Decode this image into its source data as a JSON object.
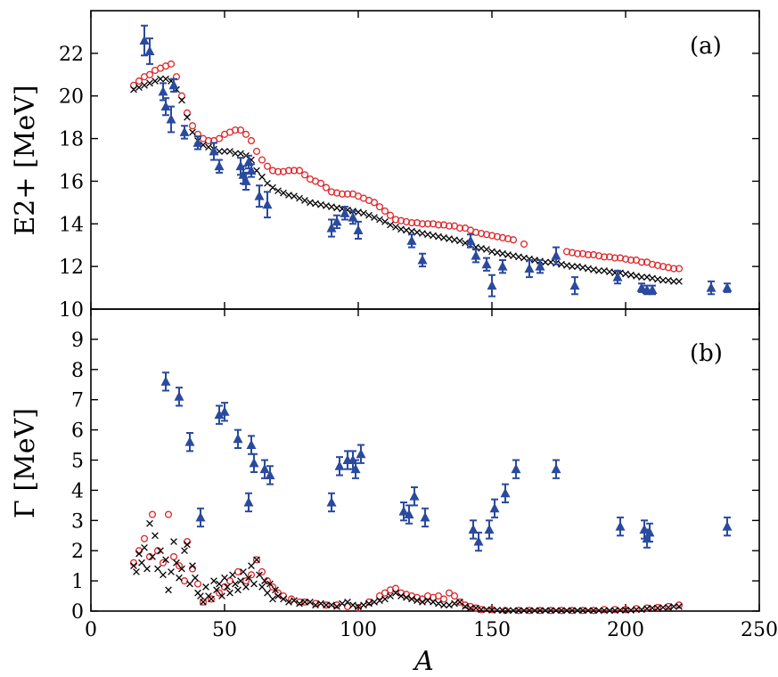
{
  "chart_data": [
    {
      "panel": "(a)",
      "type": "scatter",
      "xlabel": "A",
      "ylabel": "E2+ [MeV]",
      "xlim": [
        0,
        250
      ],
      "ylim": [
        10,
        24
      ],
      "xticks": [
        0,
        50,
        100,
        150,
        200,
        250
      ],
      "yticks": [
        10,
        12,
        14,
        16,
        18,
        20,
        22
      ],
      "series": [
        {
          "marker": "open-circle",
          "color": "#e0252a",
          "x": [
            16,
            18,
            20,
            22,
            24,
            26,
            28,
            30,
            32,
            34,
            36,
            38,
            40,
            42,
            44,
            46,
            48,
            50,
            52,
            54,
            56,
            58,
            60,
            62,
            64,
            66,
            68,
            70,
            72,
            74,
            76,
            78,
            80,
            82,
            84,
            86,
            88,
            90,
            92,
            94,
            96,
            98,
            100,
            102,
            104,
            106,
            108,
            110,
            112,
            114,
            116,
            118,
            120,
            122,
            124,
            126,
            128,
            130,
            132,
            134,
            136,
            138,
            140,
            142,
            144,
            146,
            148,
            150,
            152,
            154,
            156,
            158,
            162,
            178,
            180,
            182,
            184,
            186,
            188,
            190,
            192,
            194,
            196,
            198,
            200,
            202,
            204,
            206,
            208,
            210,
            212,
            214,
            216,
            218,
            220
          ],
          "y": [
            20.5,
            20.7,
            20.9,
            21.0,
            21.2,
            21.3,
            21.4,
            21.5,
            20.9,
            20.0,
            19.2,
            18.6,
            18.2,
            18.0,
            17.9,
            17.9,
            18.0,
            18.2,
            18.3,
            18.4,
            18.4,
            18.2,
            17.9,
            17.4,
            17.0,
            16.7,
            16.5,
            16.45,
            16.45,
            16.5,
            16.5,
            16.5,
            16.3,
            16.1,
            16.0,
            15.9,
            15.7,
            15.5,
            15.45,
            15.4,
            15.4,
            15.4,
            15.3,
            15.2,
            15.1,
            15.0,
            14.8,
            14.6,
            14.4,
            14.2,
            14.15,
            14.1,
            14.05,
            14.05,
            14.0,
            14.0,
            14.0,
            13.95,
            13.95,
            13.9,
            13.9,
            13.8,
            13.8,
            13.7,
            13.6,
            13.55,
            13.5,
            13.45,
            13.4,
            13.35,
            13.3,
            13.25,
            13.05,
            12.7,
            12.65,
            12.6,
            12.6,
            12.55,
            12.55,
            12.5,
            12.45,
            12.45,
            12.4,
            12.4,
            12.35,
            12.3,
            12.3,
            12.2,
            12.2,
            12.1,
            12.05,
            12.0,
            11.95,
            11.9,
            11.9
          ]
        },
        {
          "marker": "cross",
          "color": "#000000",
          "x": [
            16,
            18,
            20,
            22,
            24,
            26,
            28,
            30,
            32,
            34,
            36,
            38,
            40,
            42,
            44,
            46,
            48,
            50,
            52,
            54,
            56,
            58,
            60,
            62,
            64,
            66,
            68,
            70,
            72,
            74,
            76,
            78,
            80,
            82,
            84,
            86,
            88,
            90,
            92,
            94,
            96,
            98,
            100,
            102,
            104,
            106,
            108,
            110,
            112,
            114,
            116,
            118,
            120,
            122,
            124,
            126,
            128,
            130,
            132,
            134,
            136,
            138,
            140,
            142,
            144,
            146,
            148,
            150,
            152,
            154,
            156,
            158,
            160,
            162,
            164,
            166,
            168,
            170,
            172,
            174,
            176,
            178,
            180,
            182,
            184,
            186,
            188,
            190,
            192,
            194,
            196,
            198,
            200,
            202,
            204,
            206,
            208,
            210,
            212,
            214,
            216,
            218,
            220
          ],
          "y": [
            20.3,
            20.4,
            20.5,
            20.6,
            20.7,
            20.8,
            20.8,
            20.7,
            20.3,
            19.8,
            19.0,
            18.3,
            17.9,
            17.7,
            17.6,
            17.5,
            17.4,
            17.4,
            17.4,
            17.3,
            17.3,
            17.2,
            17.0,
            16.5,
            16.2,
            15.9,
            15.7,
            15.55,
            15.45,
            15.35,
            15.3,
            15.2,
            15.1,
            15.0,
            14.95,
            14.9,
            14.85,
            14.8,
            14.75,
            14.7,
            14.65,
            14.6,
            14.55,
            14.5,
            14.4,
            14.3,
            14.2,
            14.1,
            13.95,
            13.85,
            13.75,
            13.7,
            13.65,
            13.6,
            13.55,
            13.5,
            13.45,
            13.4,
            13.35,
            13.3,
            13.25,
            13.2,
            13.1,
            13.0,
            12.9,
            12.85,
            12.8,
            12.7,
            12.65,
            12.6,
            12.55,
            12.5,
            12.45,
            12.4,
            12.35,
            12.3,
            12.25,
            12.2,
            12.2,
            12.15,
            12.1,
            12.05,
            12.0,
            12.0,
            11.95,
            11.9,
            11.85,
            11.8,
            11.8,
            11.75,
            11.7,
            11.7,
            11.65,
            11.6,
            11.55,
            11.5,
            11.5,
            11.45,
            11.4,
            11.35,
            11.35,
            11.3,
            11.3
          ]
        },
        {
          "marker": "filled-triangle-errorbar",
          "color": "#2a4a9e",
          "x": [
            20,
            22,
            27,
            28,
            30,
            31,
            35,
            40,
            46,
            48,
            56,
            57,
            58,
            59,
            60,
            63,
            66,
            90,
            92,
            95,
            98,
            100,
            120,
            124,
            142,
            144,
            148,
            150,
            154,
            164,
            168,
            174,
            181,
            197,
            206,
            208,
            210,
            232,
            238
          ],
          "y": [
            22.6,
            22.1,
            20.2,
            19.5,
            18.9,
            20.5,
            18.3,
            17.8,
            17.4,
            16.7,
            16.7,
            16.3,
            16.0,
            16.9,
            16.5,
            15.3,
            14.9,
            13.8,
            14.1,
            14.5,
            14.3,
            13.7,
            13.2,
            12.3,
            13.2,
            12.5,
            12.1,
            11.1,
            12.0,
            11.9,
            12.0,
            12.5,
            11.1,
            11.5,
            11.0,
            10.9,
            10.9,
            11.0,
            11.0
          ],
          "err": [
            0.7,
            0.6,
            0.4,
            0.4,
            0.6,
            0.3,
            0.3,
            0.3,
            0.4,
            0.3,
            0.4,
            0.4,
            0.4,
            0.3,
            0.3,
            0.5,
            0.6,
            0.4,
            0.3,
            0.3,
            0.3,
            0.4,
            0.3,
            0.3,
            0.3,
            0.3,
            0.3,
            0.5,
            0.3,
            0.4,
            0.3,
            0.4,
            0.4,
            0.3,
            0.2,
            0.2,
            0.2,
            0.3,
            0.2
          ]
        }
      ]
    },
    {
      "panel": "(b)",
      "type": "scatter",
      "xlabel": "A",
      "ylabel": "Γ [MeV]",
      "xlim": [
        0,
        250
      ],
      "ylim": [
        0,
        10
      ],
      "xticks": [
        0,
        50,
        100,
        150,
        200,
        250
      ],
      "yticks": [
        0,
        1,
        2,
        3,
        4,
        5,
        6,
        7,
        8,
        9
      ],
      "series": [
        {
          "marker": "open-circle",
          "color": "#e0252a",
          "x": [
            16,
            18,
            20,
            22,
            23,
            25,
            27,
            29,
            31,
            33,
            35,
            36,
            38,
            40,
            42,
            45,
            48,
            50,
            52,
            55,
            58,
            60,
            62,
            64,
            66,
            68,
            70,
            72,
            75,
            78,
            80,
            84,
            88,
            92,
            96,
            100,
            104,
            108,
            110,
            112,
            114,
            116,
            118,
            120,
            122,
            124,
            126,
            128,
            130,
            132,
            134,
            136,
            138,
            140,
            142,
            144,
            146,
            150,
            155,
            160,
            164,
            168,
            172,
            176,
            180,
            184,
            188,
            192,
            196,
            200,
            204,
            208,
            212,
            216,
            220
          ],
          "y": [
            1.6,
            2.0,
            2.4,
            1.8,
            3.2,
            2.0,
            1.6,
            3.2,
            1.8,
            1.5,
            1.0,
            2.3,
            1.4,
            0.9,
            0.3,
            0.4,
            0.6,
            0.8,
            1.0,
            1.3,
            1.0,
            1.2,
            1.7,
            1.3,
            1.0,
            0.8,
            0.6,
            0.5,
            0.4,
            0.3,
            0.3,
            0.25,
            0.2,
            0.2,
            0.15,
            0.1,
            0.3,
            0.5,
            0.6,
            0.7,
            0.75,
            0.6,
            0.55,
            0.5,
            0.45,
            0.4,
            0.5,
            0.45,
            0.5,
            0.4,
            0.6,
            0.5,
            0.3,
            0.2,
            0.15,
            0.1,
            0.05,
            0.05,
            0.02,
            0.02,
            0.02,
            0.02,
            0.02,
            0.02,
            0.02,
            0.02,
            0.02,
            0.05,
            0.05,
            0.05,
            0.08,
            0.1,
            0.12,
            0.15,
            0.2
          ]
        },
        {
          "marker": "cross",
          "color": "#000000",
          "x": [
            16,
            17,
            18,
            19,
            20,
            21,
            22,
            23,
            24,
            25,
            26,
            27,
            28,
            29,
            30,
            31,
            32,
            33,
            34,
            35,
            36,
            37,
            38,
            39,
            40,
            41,
            42,
            43,
            44,
            45,
            46,
            47,
            48,
            49,
            50,
            51,
            52,
            53,
            54,
            55,
            56,
            57,
            58,
            59,
            60,
            61,
            62,
            63,
            64,
            65,
            66,
            67,
            68,
            69,
            70,
            72,
            74,
            76,
            78,
            80,
            82,
            84,
            86,
            88,
            90,
            92,
            94,
            96,
            98,
            100,
            102,
            104,
            106,
            108,
            110,
            112,
            114,
            116,
            118,
            120,
            122,
            124,
            126,
            128,
            130,
            132,
            134,
            136,
            138,
            140,
            142,
            144,
            146,
            148,
            150,
            152,
            154,
            156,
            158,
            160,
            162,
            164,
            166,
            168,
            170,
            172,
            174,
            176,
            178,
            180,
            182,
            184,
            186,
            188,
            190,
            192,
            194,
            196,
            198,
            200,
            202,
            204,
            206,
            208,
            210,
            212,
            214,
            216,
            218,
            220
          ],
          "y": [
            1.5,
            1.3,
            1.9,
            1.6,
            2.1,
            1.4,
            2.9,
            1.8,
            2.5,
            1.4,
            2.0,
            1.2,
            1.7,
            0.7,
            1.3,
            2.3,
            1.6,
            1.1,
            1.4,
            2.0,
            2.2,
            0.9,
            1.5,
            1.1,
            0.6,
            0.5,
            0.3,
            0.8,
            0.5,
            0.4,
            1.0,
            0.7,
            0.9,
            0.5,
            1.1,
            0.8,
            0.6,
            1.2,
            0.9,
            0.7,
            1.0,
            1.3,
            0.8,
            1.1,
            1.5,
            0.9,
            1.7,
            1.2,
            0.8,
            1.0,
            0.6,
            0.9,
            0.4,
            0.7,
            0.5,
            0.4,
            0.3,
            0.35,
            0.25,
            0.3,
            0.3,
            0.2,
            0.25,
            0.2,
            0.2,
            0.15,
            0.25,
            0.3,
            0.2,
            0.15,
            0.2,
            0.25,
            0.3,
            0.35,
            0.4,
            0.5,
            0.6,
            0.5,
            0.45,
            0.4,
            0.35,
            0.3,
            0.35,
            0.3,
            0.25,
            0.2,
            0.2,
            0.25,
            0.3,
            0.15,
            0.1,
            0.1,
            0.05,
            0.05,
            0.03,
            0.03,
            0.02,
            0.02,
            0.02,
            0.02,
            0.02,
            0.02,
            0.02,
            0.02,
            0.02,
            0.02,
            0.02,
            0.02,
            0.02,
            0.02,
            0.02,
            0.02,
            0.02,
            0.02,
            0.02,
            0.02,
            0.02,
            0.02,
            0.03,
            0.03,
            0.03,
            0.05,
            0.05,
            0.08,
            0.1,
            0.1,
            0.12,
            0.12,
            0.15,
            0.15
          ]
        },
        {
          "marker": "filled-triangle-errorbar",
          "color": "#2a4a9e",
          "x": [
            28,
            33,
            37,
            41,
            48,
            50,
            55,
            60,
            61,
            65,
            67,
            59,
            90,
            93,
            96,
            98,
            99,
            101,
            117,
            119,
            121,
            125,
            143,
            145,
            149,
            151,
            155,
            159,
            174,
            198,
            207,
            208,
            209,
            238
          ],
          "y": [
            7.6,
            7.1,
            5.6,
            3.1,
            6.5,
            6.6,
            5.7,
            5.5,
            4.9,
            4.7,
            4.5,
            3.6,
            3.6,
            4.8,
            5.0,
            5.0,
            4.7,
            5.2,
            3.3,
            3.2,
            3.8,
            3.1,
            2.7,
            2.3,
            2.7,
            3.4,
            3.9,
            4.7,
            4.7,
            2.8,
            2.7,
            2.4,
            2.6,
            2.8
          ]
        }
      ]
    }
  ],
  "labels": {
    "panel_a": "(a)",
    "panel_b": "(b)",
    "xlabel": "A",
    "ylabel_a": "E2+ [MeV]",
    "ylabel_b": "Γ [MeV]"
  }
}
